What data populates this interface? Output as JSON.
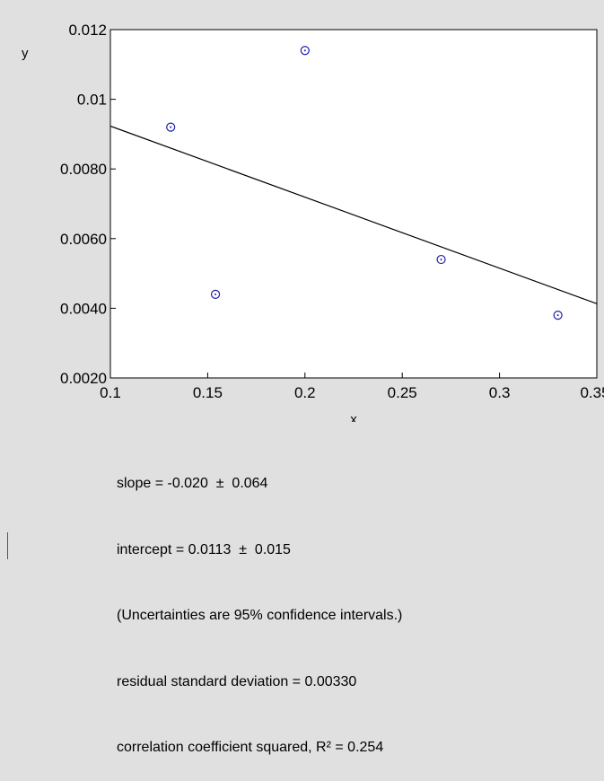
{
  "chart_data": {
    "type": "scatter",
    "xlabel": "x",
    "ylabel": "y",
    "xlim": [
      0.1,
      0.35
    ],
    "ylim": [
      0.002,
      0.012
    ],
    "x_ticks": [
      "0.1",
      "0.15",
      "0.2",
      "0.25",
      "0.3",
      "0.35"
    ],
    "y_ticks": [
      "0.0020",
      "0.0040",
      "0.0060",
      "0.0080",
      "0.01",
      "0.012"
    ],
    "points": [
      {
        "x": 0.131,
        "y": 0.0092
      },
      {
        "x": 0.154,
        "y": 0.0044
      },
      {
        "x": 0.2,
        "y": 0.0114
      },
      {
        "x": 0.27,
        "y": 0.0054
      },
      {
        "x": 0.33,
        "y": 0.0038
      }
    ],
    "fit_line": {
      "x": [
        0.1,
        0.35
      ],
      "y": [
        0.00923,
        0.00413
      ]
    },
    "grid": false,
    "marker_color": "#1f1fa8",
    "line_color": "#000000"
  },
  "stats": {
    "slope": "slope = -0.020  ±  0.064",
    "intercept": "intercept = 0.0113  ±  0.015",
    "note": "(Uncertainties are 95% confidence intervals.)",
    "residual": "residual standard deviation = 0.00330",
    "r2": "correlation coefficient squared, R² = 0.254"
  }
}
